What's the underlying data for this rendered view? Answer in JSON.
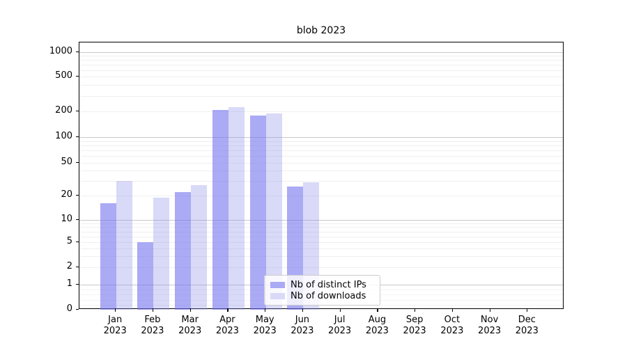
{
  "title": "blob 2023",
  "chart_data": {
    "type": "bar",
    "title": "blob 2023",
    "categories": [
      "Jan 2023",
      "Feb 2023",
      "Mar 2023",
      "Apr 2023",
      "May 2023",
      "Jun 2023",
      "Jul 2023",
      "Aug 2023",
      "Sep 2023",
      "Oct 2023",
      "Nov 2023",
      "Dec 2023"
    ],
    "series": [
      {
        "name": "Nb of distinct IPs",
        "color": "#aaaaf5",
        "bar_fill": "rgba(113,113,238,0.6)",
        "values": [
          16,
          5,
          22,
          206,
          180,
          26,
          0,
          0,
          0,
          0,
          0,
          0
        ]
      },
      {
        "name": "Nb of downloads",
        "color": "#d9d9f8",
        "bar_fill": "rgba(146,146,235,0.35)",
        "values": [
          30,
          19,
          27,
          225,
          188,
          29,
          0,
          0,
          0,
          0,
          0,
          0
        ]
      }
    ],
    "yticks": [
      0,
      1,
      2,
      5,
      10,
      20,
      50,
      100,
      200,
      500,
      1000
    ],
    "ylim": [
      0,
      1000
    ],
    "yscale": "symlog",
    "xlabel": "",
    "ylabel": "",
    "grid": true,
    "legend_position": "lower center"
  },
  "colors": {
    "major_grid": "#c8c8c8",
    "minor_grid": "#efefef",
    "axis": "#000000",
    "legend_border": "#cccccc"
  }
}
